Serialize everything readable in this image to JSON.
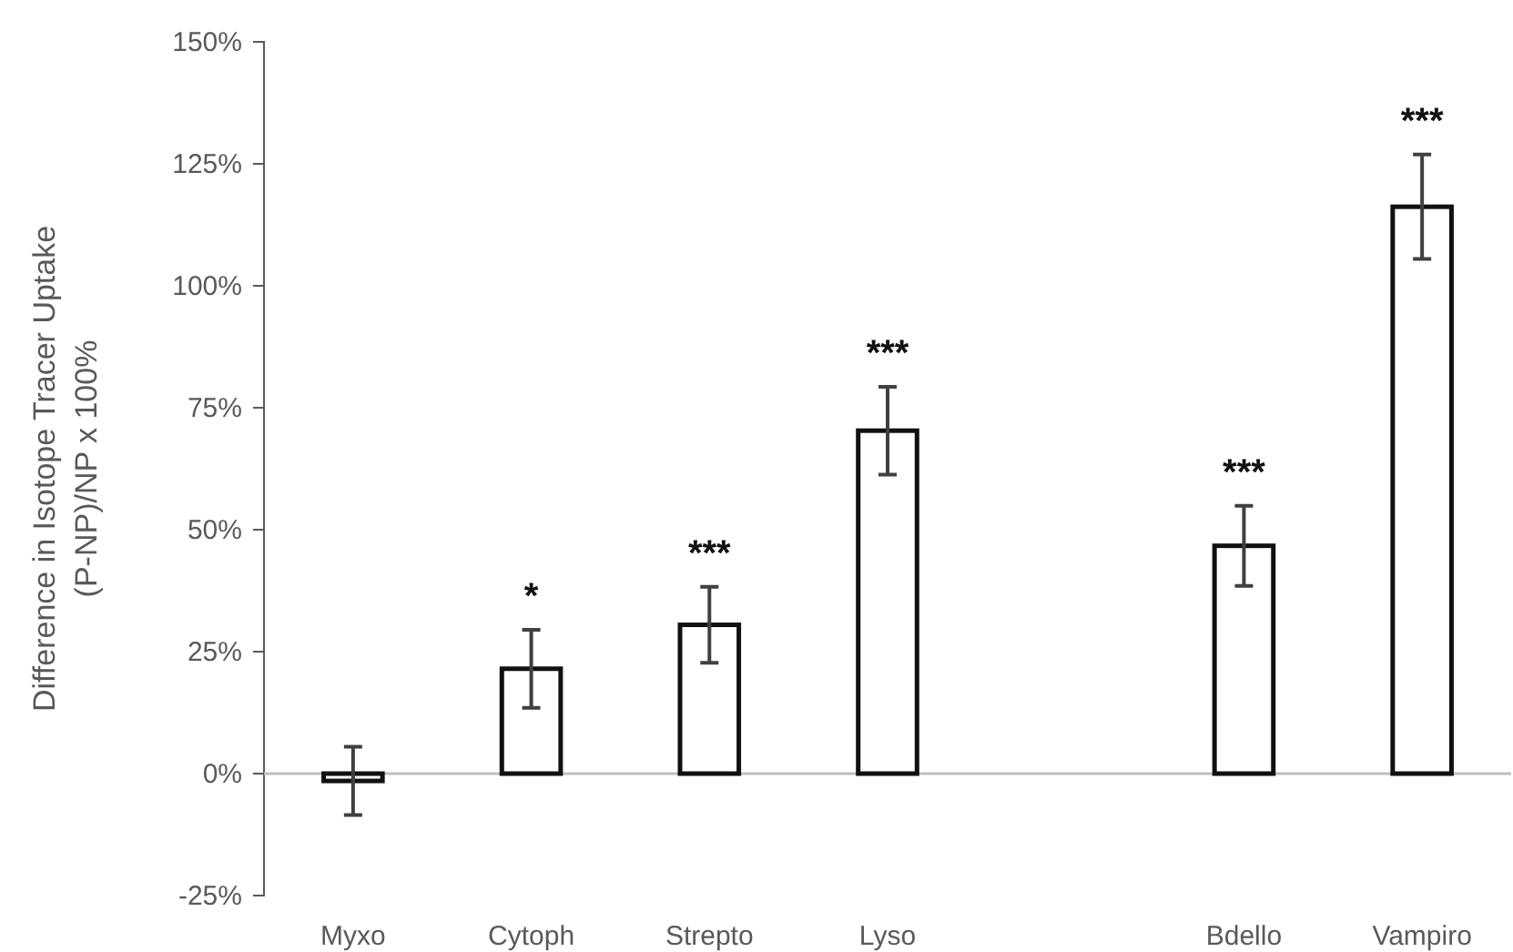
{
  "chart_data": {
    "type": "bar",
    "ylabel": "Difference in Isotope Tracer Uptake\n(P-NP)/NP x 100%",
    "categories": [
      "Myxo",
      "Cytoph",
      "Strepto",
      "Lyso",
      null,
      "Bdello",
      "Vampiro"
    ],
    "values": [
      -1.5,
      21.5,
      30.5,
      70.3,
      null,
      46.7,
      116.2
    ],
    "errors": [
      7,
      8,
      7.8,
      9,
      null,
      8.2,
      10.7
    ],
    "color": "#ffffff",
    "ylim": [
      -25,
      150
    ],
    "yticks": [
      {
        "value": -25,
        "label": "-25%"
      },
      {
        "value": 0,
        "label": "0%"
      },
      {
        "value": 25,
        "label": "25%"
      },
      {
        "value": 50,
        "label": "50%"
      },
      {
        "value": 75,
        "label": "75%"
      },
      {
        "value": 100,
        "label": "100%"
      },
      {
        "value": 125,
        "label": "125%"
      },
      {
        "value": 150,
        "label": "150%"
      }
    ],
    "value_labels": [
      null,
      "*",
      "***",
      "***",
      null,
      "***",
      "***"
    ]
  }
}
